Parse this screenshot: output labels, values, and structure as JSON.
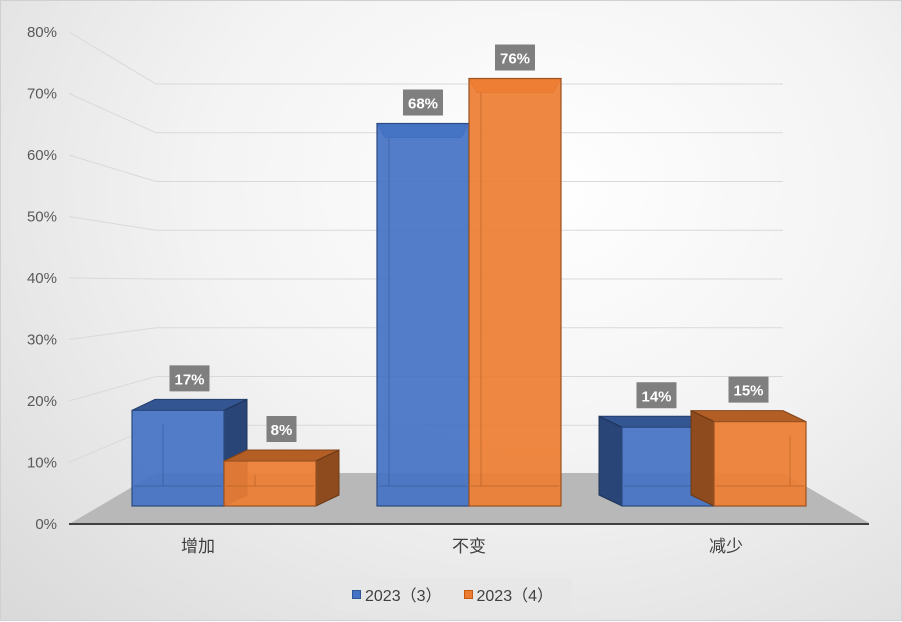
{
  "chart_data": {
    "type": "bar",
    "three_d": true,
    "categories": [
      "增加",
      "不变",
      "减少"
    ],
    "series": [
      {
        "name": "2023（3）",
        "values": [
          17,
          68,
          14
        ],
        "labels": [
          "17%",
          "68%",
          "14%"
        ],
        "color": "#4472c4"
      },
      {
        "name": "2023（4）",
        "values": [
          8,
          76,
          15
        ],
        "labels": [
          "8%",
          "76%",
          "15%"
        ],
        "color": "#ed7d31"
      }
    ],
    "yticks": [
      "0%",
      "10%",
      "20%",
      "30%",
      "40%",
      "50%",
      "60%",
      "70%",
      "80%"
    ],
    "ylim": [
      0,
      80
    ],
    "grid": true,
    "legend": "bottom"
  }
}
